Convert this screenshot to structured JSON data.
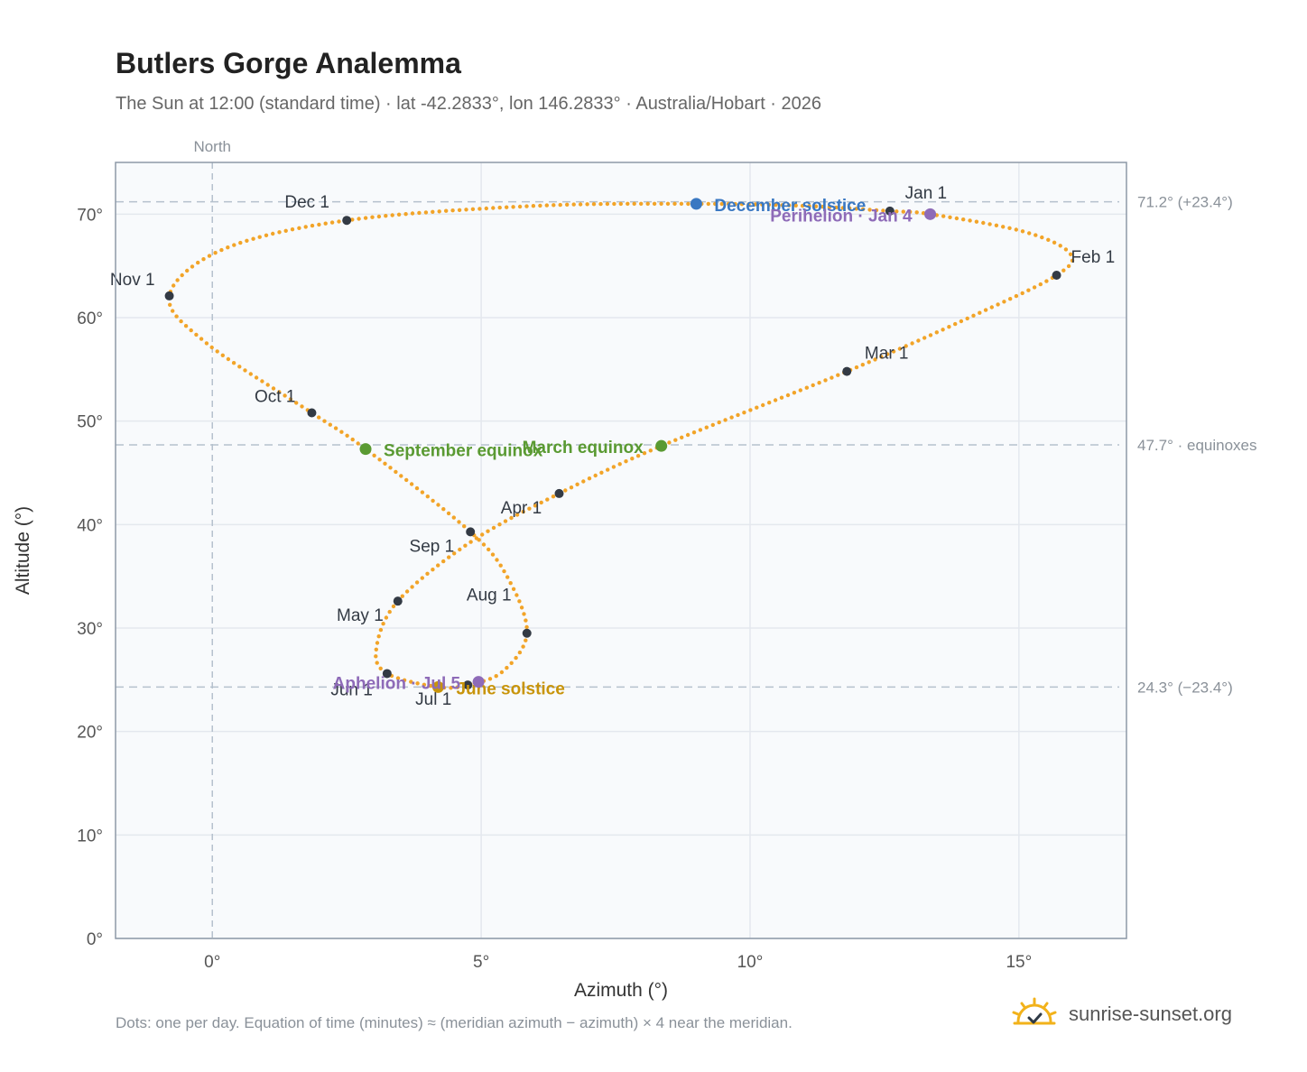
{
  "header": {
    "title": "Butlers Gorge Analemma",
    "subtitle": "The Sun at 12:00 (standard time) · lat -42.2833°, lon 146.2833° · Australia/Hobart · 2026"
  },
  "footer": {
    "note": "Dots: one per day. Equation of time (minutes) ≈ (meridian azimuth − azimuth) × 4 near the meridian.",
    "brand": "sunrise-sunset.org"
  },
  "chart_data": {
    "type": "scatter",
    "xlabel": "Azimuth (°)",
    "ylabel": "Altitude (°)",
    "xlim": [
      -1.8,
      17
    ],
    "ylim": [
      0,
      75
    ],
    "x_ticks": [
      0,
      5,
      10,
      15
    ],
    "x_tick_labels": [
      "0°",
      "5°",
      "10°",
      "15°"
    ],
    "y_ticks": [
      0,
      10,
      20,
      30,
      40,
      50,
      60,
      70
    ],
    "y_tick_labels": [
      "0°",
      "10°",
      "20°",
      "30°",
      "40°",
      "50°",
      "60°",
      "70°"
    ],
    "grid": true,
    "north_line": {
      "x": 0,
      "label": "North"
    },
    "reference_lines": [
      {
        "y": 71.2,
        "label": "71.2° (+23.4°)"
      },
      {
        "y": 47.7,
        "label": "47.7° · equinoxes"
      },
      {
        "y": 24.3,
        "label": "24.3° (−23.4°)"
      }
    ],
    "months": [
      {
        "label": "Jan 1",
        "x": 12.6,
        "y": 70.3
      },
      {
        "label": "Feb 1",
        "x": 15.7,
        "y": 64.1
      },
      {
        "label": "Mar 1",
        "x": 11.8,
        "y": 54.8
      },
      {
        "label": "Apr 1",
        "x": 6.45,
        "y": 43.0
      },
      {
        "label": "May 1",
        "x": 3.45,
        "y": 32.6
      },
      {
        "label": "Jun 1",
        "x": 3.25,
        "y": 25.6
      },
      {
        "label": "Jul 1",
        "x": 4.75,
        "y": 24.5
      },
      {
        "label": "Aug 1",
        "x": 5.85,
        "y": 29.5
      },
      {
        "label": "Sep 1",
        "x": 4.8,
        "y": 39.3
      },
      {
        "label": "Oct 1",
        "x": 1.85,
        "y": 50.8
      },
      {
        "label": "Nov 1",
        "x": -0.8,
        "y": 62.1
      },
      {
        "label": "Dec 1",
        "x": 2.5,
        "y": 69.4
      }
    ],
    "events": [
      {
        "label": "December solstice",
        "x": 9.0,
        "y": 71.0,
        "color": "#3a78c2"
      },
      {
        "label": "Perihelion · Jan 4",
        "x": 13.35,
        "y": 70.0,
        "color": "#8e6bb8"
      },
      {
        "label": "March equinox",
        "x": 8.35,
        "y": 47.6,
        "color": "#5a9a32"
      },
      {
        "label": "September equinox",
        "x": 2.85,
        "y": 47.3,
        "color": "#5a9a32"
      },
      {
        "label": "June solstice",
        "x": 4.2,
        "y": 24.3,
        "color": "#c8940a"
      },
      {
        "label": "Aphelion · Jul 5",
        "x": 4.95,
        "y": 24.8,
        "color": "#8e6bb8"
      }
    ],
    "curve_anchors": [
      {
        "x": 12.6,
        "y": 70.3
      },
      {
        "x": 13.35,
        "y": 70.0
      },
      {
        "x": 15.1,
        "y": 68.3
      },
      {
        "x": 15.95,
        "y": 66.2
      },
      {
        "x": 15.7,
        "y": 64.1
      },
      {
        "x": 14.2,
        "y": 60.3
      },
      {
        "x": 11.8,
        "y": 54.8
      },
      {
        "x": 8.35,
        "y": 47.6
      },
      {
        "x": 6.45,
        "y": 43.0
      },
      {
        "x": 4.8,
        "y": 38.3
      },
      {
        "x": 3.45,
        "y": 32.6
      },
      {
        "x": 3.05,
        "y": 28.0
      },
      {
        "x": 3.25,
        "y": 25.6
      },
      {
        "x": 4.2,
        "y": 24.3
      },
      {
        "x": 4.75,
        "y": 24.5
      },
      {
        "x": 5.4,
        "y": 25.8
      },
      {
        "x": 5.85,
        "y": 29.5
      },
      {
        "x": 5.5,
        "y": 34.8
      },
      {
        "x": 4.8,
        "y": 39.3
      },
      {
        "x": 2.85,
        "y": 47.3
      },
      {
        "x": 1.85,
        "y": 50.8
      },
      {
        "x": -0.1,
        "y": 57.5
      },
      {
        "x": -0.8,
        "y": 62.1
      },
      {
        "x": 0.2,
        "y": 66.6
      },
      {
        "x": 2.5,
        "y": 69.4
      },
      {
        "x": 6.0,
        "y": 70.8
      },
      {
        "x": 9.0,
        "y": 71.0
      },
      {
        "x": 11.0,
        "y": 70.8
      },
      {
        "x": 12.6,
        "y": 70.3
      }
    ],
    "colors": {
      "curve": "#f2a428",
      "month_dot": "#333a44",
      "grid": "#e4e8ee",
      "reference_line": "#b5c1cd",
      "plot_bg": "#f8fafc",
      "frame": "#8d99a7"
    }
  }
}
